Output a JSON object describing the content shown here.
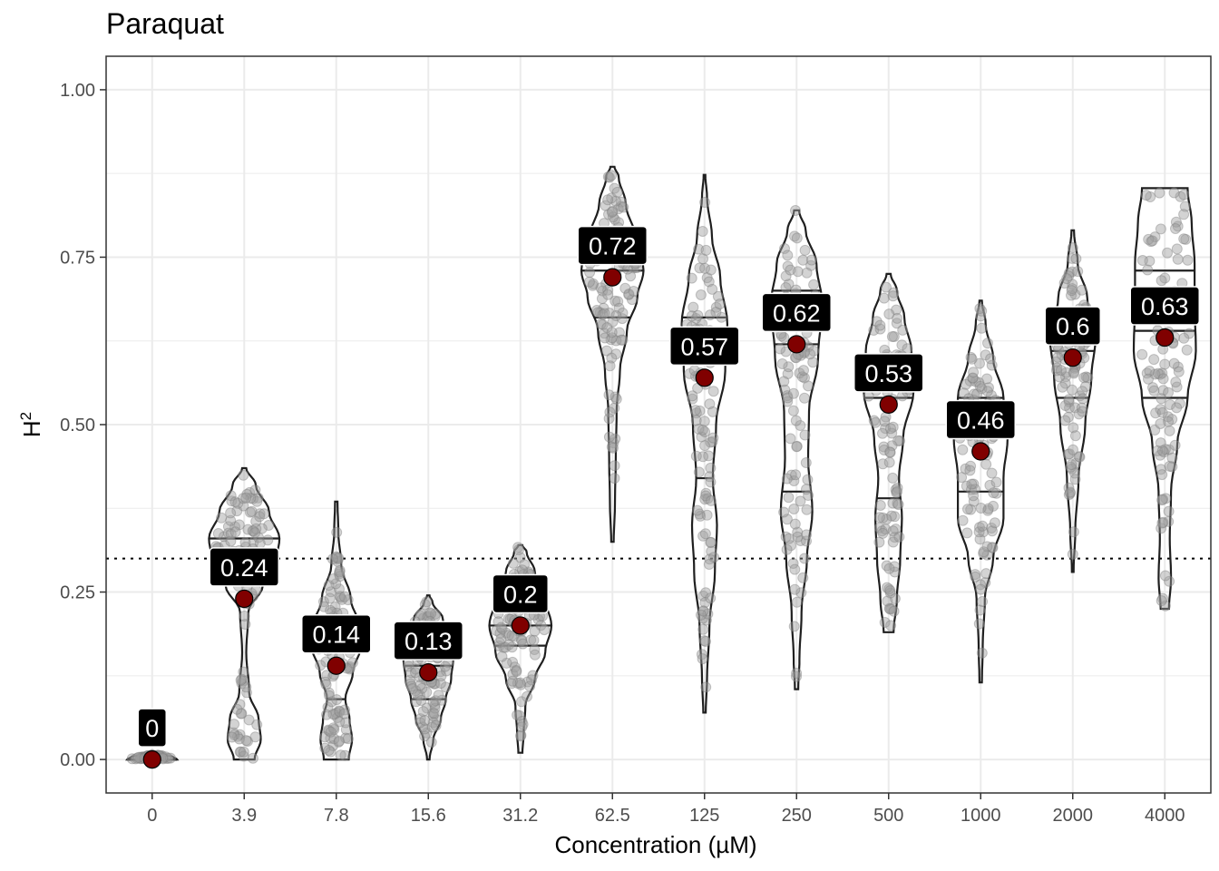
{
  "chart_data": {
    "type": "violin",
    "title": "Paraquat",
    "xlabel": "Concentration (µM)",
    "ylabel": "H",
    "ylabel_superscript": "2",
    "ylim": [
      -0.05,
      1.05
    ],
    "yticks": [
      "0.00",
      "0.25",
      "0.50",
      "0.75",
      "1.00"
    ],
    "ytick_values": [
      0,
      0.25,
      0.5,
      0.75,
      1.0
    ],
    "threshold_line": 0.3,
    "categories": [
      "0",
      "3.9",
      "7.8",
      "15.6",
      "31.2",
      "62.5",
      "125",
      "250",
      "500",
      "1000",
      "2000",
      "4000"
    ],
    "means": [
      0,
      0.24,
      0.14,
      0.13,
      0.2,
      0.72,
      0.57,
      0.62,
      0.53,
      0.46,
      0.6,
      0.63
    ],
    "mean_labels": [
      "0",
      "0.24",
      "0.14",
      "0.13",
      "0.2",
      "0.72",
      "0.57",
      "0.62",
      "0.53",
      "0.46",
      "0.6",
      "0.63"
    ],
    "quantiles": [
      [
        0,
        0,
        0
      ],
      [
        0.29,
        0.31,
        0.33
      ],
      [
        0.09,
        0.16,
        0.2
      ],
      [
        0.09,
        0.14,
        0.17
      ],
      [
        0.17,
        0.2,
        0.23
      ],
      [
        0.66,
        0.73,
        0.78
      ],
      [
        0.42,
        0.59,
        0.66
      ],
      [
        0.4,
        0.62,
        0.7
      ],
      [
        0.39,
        0.54,
        0.6
      ],
      [
        0.4,
        0.48,
        0.54
      ],
      [
        0.54,
        0.61,
        0.66
      ],
      [
        0.54,
        0.64,
        0.73
      ]
    ],
    "violin_profiles": [
      [
        [
          0,
          0.6
        ],
        [
          0.004,
          0.5
        ],
        [
          0.008,
          0.05
        ]
      ],
      [
        [
          0,
          0.25
        ],
        [
          0.03,
          0.4
        ],
        [
          0.06,
          0.35
        ],
        [
          0.1,
          0.12
        ],
        [
          0.16,
          0.05
        ],
        [
          0.22,
          0.1
        ],
        [
          0.26,
          0.45
        ],
        [
          0.29,
          0.75
        ],
        [
          0.33,
          0.85
        ],
        [
          0.37,
          0.6
        ],
        [
          0.41,
          0.28
        ],
        [
          0.435,
          0.05
        ]
      ],
      [
        [
          0,
          0.3
        ],
        [
          0.03,
          0.38
        ],
        [
          0.06,
          0.32
        ],
        [
          0.09,
          0.22
        ],
        [
          0.13,
          0.4
        ],
        [
          0.17,
          0.6
        ],
        [
          0.2,
          0.55
        ],
        [
          0.24,
          0.35
        ],
        [
          0.29,
          0.12
        ],
        [
          0.34,
          0.05
        ],
        [
          0.385,
          0.03
        ]
      ],
      [
        [
          0,
          0.03
        ],
        [
          0.03,
          0.12
        ],
        [
          0.06,
          0.3
        ],
        [
          0.09,
          0.42
        ],
        [
          0.12,
          0.55
        ],
        [
          0.15,
          0.6
        ],
        [
          0.18,
          0.55
        ],
        [
          0.21,
          0.35
        ],
        [
          0.235,
          0.1
        ],
        [
          0.245,
          0.03
        ]
      ],
      [
        [
          0.01,
          0.05
        ],
        [
          0.04,
          0.08
        ],
        [
          0.08,
          0.12
        ],
        [
          0.12,
          0.35
        ],
        [
          0.16,
          0.6
        ],
        [
          0.2,
          0.75
        ],
        [
          0.24,
          0.6
        ],
        [
          0.28,
          0.35
        ],
        [
          0.31,
          0.15
        ],
        [
          0.32,
          0.05
        ]
      ],
      [
        [
          0.325,
          0.03
        ],
        [
          0.38,
          0.06
        ],
        [
          0.45,
          0.08
        ],
        [
          0.52,
          0.1
        ],
        [
          0.58,
          0.18
        ],
        [
          0.64,
          0.35
        ],
        [
          0.69,
          0.6
        ],
        [
          0.73,
          0.75
        ],
        [
          0.78,
          0.55
        ],
        [
          0.83,
          0.32
        ],
        [
          0.87,
          0.15
        ],
        [
          0.885,
          0.05
        ]
      ],
      [
        [
          0.07,
          0.03
        ],
        [
          0.12,
          0.06
        ],
        [
          0.2,
          0.12
        ],
        [
          0.28,
          0.25
        ],
        [
          0.35,
          0.3
        ],
        [
          0.42,
          0.2
        ],
        [
          0.5,
          0.28
        ],
        [
          0.58,
          0.5
        ],
        [
          0.65,
          0.55
        ],
        [
          0.72,
          0.38
        ],
        [
          0.78,
          0.18
        ],
        [
          0.84,
          0.06
        ],
        [
          0.873,
          0.02
        ]
      ],
      [
        [
          0.105,
          0.04
        ],
        [
          0.15,
          0.07
        ],
        [
          0.22,
          0.12
        ],
        [
          0.3,
          0.25
        ],
        [
          0.37,
          0.38
        ],
        [
          0.45,
          0.28
        ],
        [
          0.52,
          0.3
        ],
        [
          0.6,
          0.52
        ],
        [
          0.68,
          0.62
        ],
        [
          0.74,
          0.48
        ],
        [
          0.79,
          0.22
        ],
        [
          0.82,
          0.06
        ]
      ],
      [
        [
          0.19,
          0.12
        ],
        [
          0.24,
          0.2
        ],
        [
          0.3,
          0.28
        ],
        [
          0.36,
          0.32
        ],
        [
          0.42,
          0.25
        ],
        [
          0.48,
          0.35
        ],
        [
          0.55,
          0.6
        ],
        [
          0.61,
          0.55
        ],
        [
          0.66,
          0.38
        ],
        [
          0.7,
          0.2
        ],
        [
          0.725,
          0.05
        ]
      ],
      [
        [
          0.115,
          0.03
        ],
        [
          0.17,
          0.05
        ],
        [
          0.24,
          0.1
        ],
        [
          0.3,
          0.3
        ],
        [
          0.36,
          0.55
        ],
        [
          0.42,
          0.55
        ],
        [
          0.48,
          0.65
        ],
        [
          0.54,
          0.55
        ],
        [
          0.6,
          0.3
        ],
        [
          0.65,
          0.12
        ],
        [
          0.685,
          0.03
        ]
      ],
      [
        [
          0.28,
          0.02
        ],
        [
          0.34,
          0.06
        ],
        [
          0.42,
          0.14
        ],
        [
          0.5,
          0.3
        ],
        [
          0.57,
          0.45
        ],
        [
          0.63,
          0.55
        ],
        [
          0.69,
          0.35
        ],
        [
          0.74,
          0.12
        ],
        [
          0.79,
          0.03
        ]
      ],
      [
        [
          0.225,
          0.1
        ],
        [
          0.27,
          0.15
        ],
        [
          0.33,
          0.12
        ],
        [
          0.4,
          0.15
        ],
        [
          0.47,
          0.3
        ],
        [
          0.54,
          0.55
        ],
        [
          0.61,
          0.75
        ],
        [
          0.68,
          0.72
        ],
        [
          0.74,
          0.72
        ],
        [
          0.8,
          0.65
        ],
        [
          0.853,
          0.55
        ]
      ]
    ],
    "colors": {
      "mean_point": "#800000",
      "jitter": "#9e9e9e",
      "violin_stroke": "#1f1f1f",
      "grid": "#ebebeb",
      "label_bg": "#000000",
      "label_text": "#ffffff"
    }
  }
}
